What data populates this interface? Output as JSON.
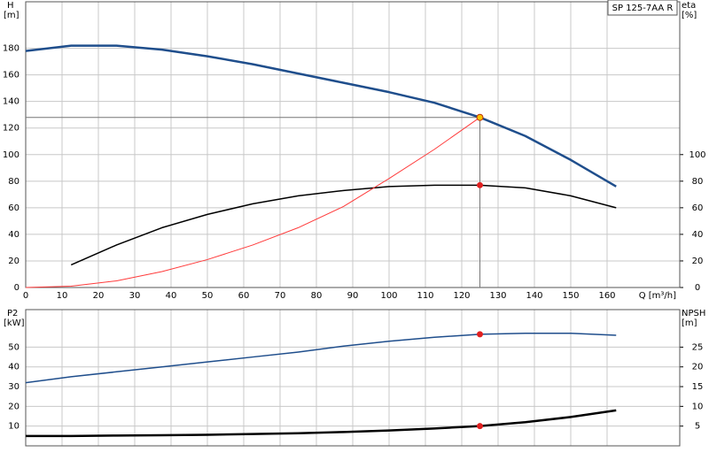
{
  "chart_data": [
    {
      "type": "line",
      "title": "SP 125-7AA R",
      "ylabel": [
        "H",
        "[m]"
      ],
      "y2label": [
        "eta",
        "[%]"
      ],
      "xlabel": "Q [m³/h]",
      "xlim": [
        0,
        180
      ],
      "xticks": [
        0,
        10,
        20,
        30,
        40,
        50,
        60,
        70,
        80,
        90,
        100,
        110,
        120,
        130,
        140,
        150,
        160
      ],
      "ylim": [
        0,
        215
      ],
      "yticks": [
        0,
        20,
        40,
        60,
        80,
        100,
        120,
        140,
        160,
        180
      ],
      "y2lim": [
        0,
        215
      ],
      "y2ticks": [
        0,
        20,
        40,
        60,
        80,
        100
      ],
      "grid": true,
      "show_xtick_labels": true,
      "series": [
        {
          "color": "#1f4e8c",
          "width": 2.5,
          "x": [
            0,
            12.5,
            25,
            37.5,
            50,
            62.5,
            75,
            87.5,
            100,
            112.5,
            125,
            137.5,
            150,
            162.5
          ],
          "values": [
            178,
            182,
            182,
            179,
            174,
            168,
            161,
            154,
            147,
            139,
            128,
            114,
            96,
            76
          ]
        },
        {
          "color": "#000000",
          "width": 1.5,
          "axis": "y2",
          "x": [
            12.5,
            25,
            37.5,
            50,
            62.5,
            75,
            87.5,
            100,
            112.5,
            125,
            137.5,
            150,
            162.5
          ],
          "values": [
            17,
            32,
            45,
            55,
            63,
            69,
            73,
            76,
            77,
            77,
            75,
            69,
            60
          ]
        },
        {
          "color": "#ff3b3b",
          "width": 1,
          "x": [
            0,
            12.5,
            25,
            37.5,
            50,
            62.5,
            75,
            87.5,
            100,
            112.5,
            125
          ],
          "values": [
            0,
            1,
            5,
            12,
            21,
            32,
            45,
            61,
            82,
            104,
            128
          ]
        }
      ],
      "points": [
        {
          "x": 125,
          "y": 128,
          "color": "#f5c400",
          "guides": true
        },
        {
          "x": 125,
          "y": 77,
          "color": "#e02020",
          "axis": "y2"
        }
      ]
    },
    {
      "type": "line",
      "ylabel": [
        "P2",
        "[kW]"
      ],
      "y2label": [
        "NPSH",
        "[m]"
      ],
      "xlim": [
        0,
        180
      ],
      "xticks": [
        0,
        10,
        20,
        30,
        40,
        50,
        60,
        70,
        80,
        90,
        100,
        110,
        120,
        130,
        140,
        150,
        160
      ],
      "ylim": [
        0,
        69
      ],
      "yticks": [
        10,
        20,
        30,
        40,
        50
      ],
      "y2lim": [
        0,
        34.5
      ],
      "y2ticks": [
        5,
        10,
        15,
        20,
        25
      ],
      "grid": true,
      "show_xtick_labels": false,
      "series": [
        {
          "color": "#1f4e8c",
          "width": 1.5,
          "x": [
            0,
            12.5,
            25,
            37.5,
            50,
            62.5,
            75,
            87.5,
            100,
            112.5,
            125,
            137.5,
            150,
            162.5
          ],
          "values": [
            32,
            35,
            37.5,
            40,
            42.5,
            45,
            47.5,
            50.5,
            53,
            55,
            56.5,
            57,
            57,
            56
          ]
        },
        {
          "color": "#000000",
          "width": 2.5,
          "axis": "y2",
          "x": [
            0,
            12.5,
            25,
            37.5,
            50,
            62.5,
            75,
            87.5,
            100,
            112.5,
            125,
            137.5,
            150,
            162.5
          ],
          "values": [
            2.5,
            2.5,
            2.6,
            2.7,
            2.8,
            3.0,
            3.2,
            3.5,
            3.9,
            4.4,
            5,
            6,
            7.3,
            9
          ]
        }
      ],
      "points": [
        {
          "x": 125,
          "y": 56.5,
          "color": "#e02020"
        },
        {
          "x": 125,
          "y": 5,
          "color": "#e02020",
          "axis": "y2"
        }
      ]
    }
  ]
}
